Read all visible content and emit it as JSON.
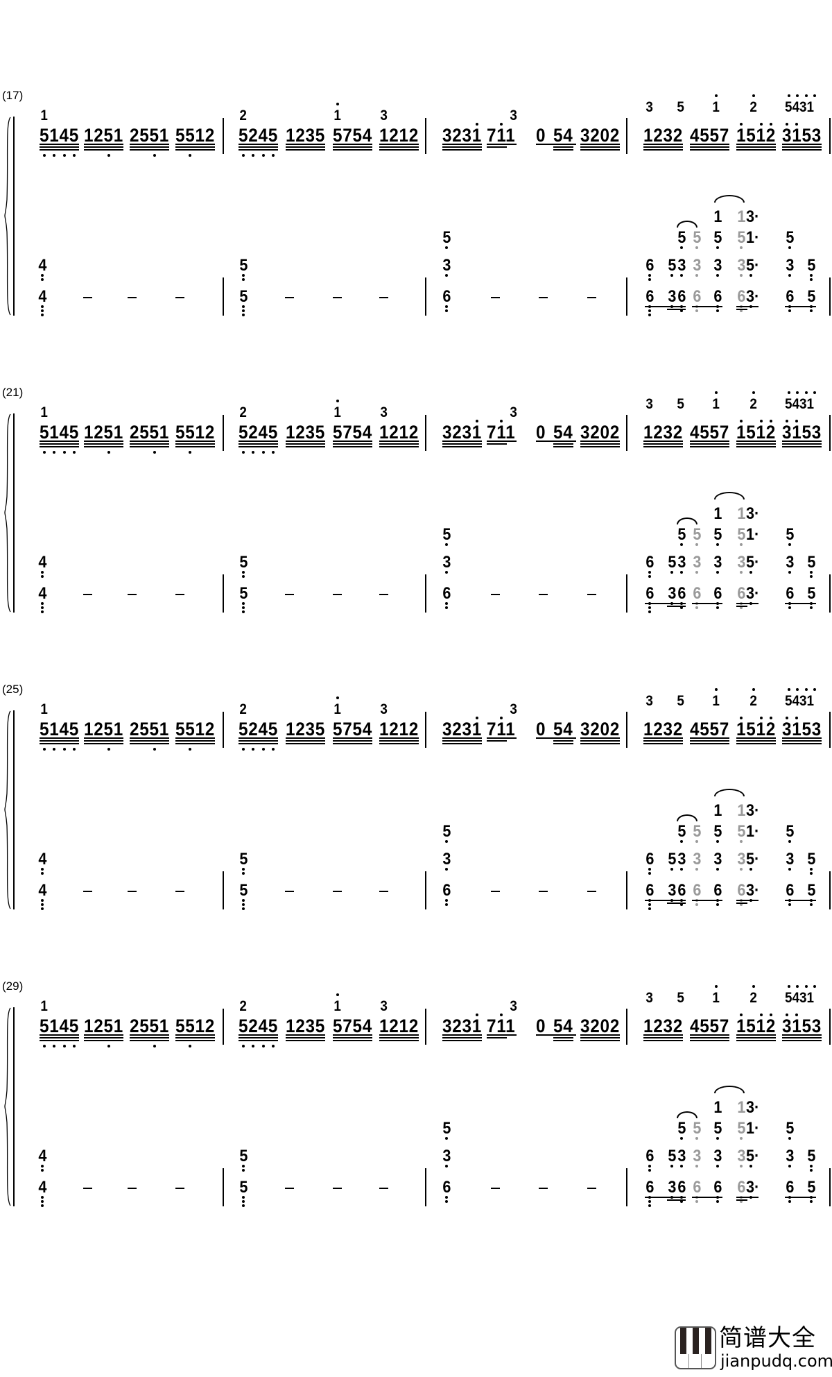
{
  "systems": [
    {
      "label": "(17)"
    },
    {
      "label": "(21)"
    },
    {
      "label": "(25)"
    },
    {
      "label": "(29)"
    }
  ],
  "upper_top": [
    {
      "t": "1",
      "up": "0"
    },
    {
      "t": "2",
      "up": "0"
    },
    {
      "t": "1",
      "up": "1"
    },
    {
      "t": "3",
      "up": "0"
    },
    {
      "t": "3",
      "up": "0"
    },
    {
      "t": "3",
      "up": "0"
    },
    {
      "t": "5",
      "up": "0"
    },
    {
      "t": "1",
      "up": "1"
    },
    {
      "t": "2",
      "up": "1"
    },
    {
      "t": "5431",
      "up": "1111"
    }
  ],
  "upper_main": [
    {
      "t": "5145",
      "dn": "1111",
      "up": "0000"
    },
    {
      "t": "1251",
      "dn": "0010",
      "up": "0000"
    },
    {
      "t": "2551",
      "dn": "0010",
      "up": "0000"
    },
    {
      "t": "5512",
      "dn": "0100",
      "up": "0000"
    },
    {
      "t": "5245",
      "dn": "1111",
      "up": "0000"
    },
    {
      "t": "1235",
      "dn": "0000",
      "up": "0000"
    },
    {
      "t": "5754",
      "dn": "0000",
      "up": "0000"
    },
    {
      "t": "1212",
      "dn": "0000",
      "up": "0000"
    },
    {
      "t": "3231",
      "dn": "0000",
      "up": "0001"
    },
    {
      "t": "711",
      "dn": "000",
      "up": "010"
    },
    {
      "t": "0",
      "dn": "0",
      "up": "0"
    },
    {
      "t": "54",
      "dn": "00",
      "up": "00"
    },
    {
      "t": "3202",
      "dn": "0000",
      "up": "0000"
    },
    {
      "t": "1232",
      "dn": "0000",
      "up": "0000"
    },
    {
      "t": "4557",
      "dn": "0000",
      "up": "0000"
    },
    {
      "t": "1512",
      "dn": "0000",
      "up": "1011"
    },
    {
      "t": "3153",
      "dn": "0000",
      "up": "1100"
    }
  ],
  "lower_simple": [
    {
      "t": "4",
      "dots": 2
    },
    {
      "t": "4",
      "dots": 3
    },
    {
      "t": "5",
      "dots": 2
    },
    {
      "t": "5",
      "dots": 3
    },
    {
      "t": "5",
      "dots": 1
    },
    {
      "t": "3",
      "dots": 1
    },
    {
      "t": "6",
      "dots": 2
    }
  ],
  "lower_m4": [
    {
      "t": "6",
      "gray": false,
      "dots": 2
    },
    {
      "t": "6",
      "gray": false,
      "dots": 3
    },
    {
      "t": "5",
      "gray": false,
      "dots": 1
    },
    {
      "t": "3",
      "gray": false,
      "dots": 1
    },
    {
      "t": "3",
      "gray": false,
      "dots": 1
    },
    {
      "t": "6",
      "gray": false,
      "dots": 2
    },
    {
      "t": "5",
      "gray": false,
      "dots": 1
    },
    {
      "t": "5",
      "gray": true,
      "dots": 1
    },
    {
      "t": "3",
      "gray": true,
      "dots": 1
    },
    {
      "t": "6",
      "gray": true,
      "dots": 2
    },
    {
      "t": "1",
      "gray": false,
      "dots": 0
    },
    {
      "t": "5",
      "gray": false,
      "dots": 1
    },
    {
      "t": "3",
      "gray": false,
      "dots": 1
    },
    {
      "t": "6",
      "gray": false,
      "dots": 2
    },
    {
      "t": "1",
      "gray": true,
      "dots": 0
    },
    {
      "t": "3·",
      "gray": false,
      "dots": 0
    },
    {
      "t": "5",
      "gray": true,
      "dots": 1
    },
    {
      "t": "1·",
      "gray": false,
      "dots": 0
    },
    {
      "t": "3",
      "gray": true,
      "dots": 1
    },
    {
      "t": "5·",
      "gray": false,
      "dots": 1
    },
    {
      "t": "6",
      "gray": true,
      "dots": 2
    },
    {
      "t": "3·",
      "gray": false,
      "dots": 1
    },
    {
      "t": "5",
      "gray": false,
      "dots": 1
    },
    {
      "t": "3",
      "gray": false,
      "dots": 1
    },
    {
      "t": "6",
      "gray": false,
      "dots": 2
    },
    {
      "t": "5",
      "gray": false,
      "dots": 2
    },
    {
      "t": "5",
      "gray": false,
      "dots": 2
    }
  ],
  "colors": {
    "ink": "#000000",
    "gray_note": "#9a9a9a"
  },
  "logo": {
    "name_cn": "简谱大全",
    "domain": "jianpudq.com",
    "icon": "piano-keys-icon"
  }
}
